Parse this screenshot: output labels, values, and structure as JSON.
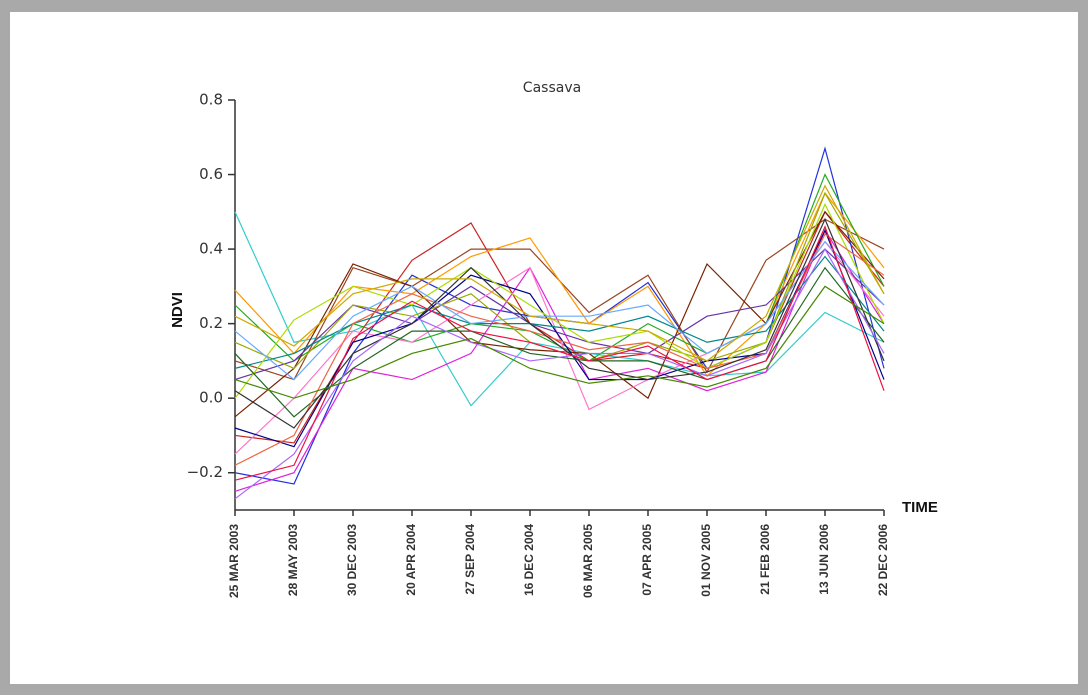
{
  "chart_data": {
    "type": "line",
    "title": "Cassava",
    "x_label": "TIME",
    "y_label": "NDVI",
    "categories": [
      "25 MAR 2003",
      "28 MAY 2003",
      "30 DEC 2003",
      "20 APR 2004",
      "27 SEP 2004",
      "16 DEC 2004",
      "06 MAR 2005",
      "07 APR 2005",
      "01 NOV 2005",
      "21 FEB 2006",
      "13 JUN 2006",
      "22 DEC 2006"
    ],
    "category_colors": [
      "#111111",
      "#111111",
      "#111111",
      "#111111",
      "#e02020",
      "#111111",
      "#111111",
      "#111111",
      "#111111",
      "#111111",
      "#e02020",
      "#e02020"
    ],
    "ylim": [
      -0.3,
      0.8
    ],
    "yticks": [
      {
        "value": -0.2,
        "label": "−0.2"
      },
      {
        "value": 0,
        "label": "0.0"
      },
      0.2,
      0.4,
      0.6,
      0.8
    ],
    "series": [
      {
        "color": "#33cccc",
        "values": [
          0.5,
          0.15,
          0.18,
          0.25,
          -0.02,
          0.15,
          0.12,
          0.1,
          0.06,
          0.07,
          0.23,
          0.15
        ]
      },
      {
        "color": "#cc2222",
        "values": [
          -0.1,
          -0.12,
          0.15,
          0.37,
          0.47,
          0.2,
          0.1,
          0.12,
          0.08,
          0.15,
          0.5,
          0.3
        ]
      },
      {
        "color": "#2233dd",
        "values": [
          -0.2,
          -0.23,
          0.12,
          0.33,
          0.25,
          0.22,
          0.2,
          0.31,
          0.08,
          0.15,
          0.67,
          0.08
        ]
      },
      {
        "color": "#994422",
        "values": [
          0.1,
          0.05,
          0.35,
          0.3,
          0.4,
          0.4,
          0.23,
          0.33,
          0.07,
          0.37,
          0.48,
          0.4
        ]
      },
      {
        "color": "#ff9900",
        "values": [
          0.29,
          0.12,
          0.3,
          0.28,
          0.38,
          0.43,
          0.2,
          0.3,
          0.06,
          0.2,
          0.55,
          0.35
        ]
      },
      {
        "color": "#22aa22",
        "values": [
          0.25,
          0.1,
          0.2,
          0.15,
          0.2,
          0.18,
          0.1,
          0.2,
          0.12,
          0.2,
          0.6,
          0.3
        ]
      },
      {
        "color": "#dd22dd",
        "values": [
          -0.25,
          -0.2,
          0.08,
          0.05,
          0.12,
          0.35,
          0.05,
          0.08,
          0.02,
          0.07,
          0.45,
          0.2
        ]
      },
      {
        "color": "#772200",
        "values": [
          -0.05,
          0.08,
          0.36,
          0.3,
          0.15,
          0.13,
          0.12,
          0.0,
          0.36,
          0.2,
          0.5,
          0.32
        ]
      },
      {
        "color": "#6633aa",
        "values": [
          0.05,
          0.1,
          0.25,
          0.2,
          0.3,
          0.2,
          0.15,
          0.12,
          0.22,
          0.25,
          0.4,
          0.25
        ]
      },
      {
        "color": "#ff77cc",
        "values": [
          -0.15,
          0.0,
          0.18,
          0.15,
          0.25,
          0.35,
          -0.03,
          0.05,
          0.12,
          0.2,
          0.42,
          0.22
        ]
      },
      {
        "color": "#99aa00",
        "values": [
          0.15,
          0.08,
          0.25,
          0.22,
          0.28,
          0.15,
          0.1,
          0.15,
          0.1,
          0.15,
          0.55,
          0.28
        ]
      },
      {
        "color": "#000088",
        "values": [
          -0.08,
          -0.13,
          0.15,
          0.2,
          0.33,
          0.28,
          0.05,
          0.05,
          0.1,
          0.12,
          0.45,
          0.05
        ]
      },
      {
        "color": "#008888",
        "values": [
          0.08,
          0.12,
          0.2,
          0.25,
          0.2,
          0.2,
          0.18,
          0.22,
          0.15,
          0.18,
          0.38,
          0.18
        ]
      },
      {
        "color": "#aadd00",
        "values": [
          0.0,
          0.21,
          0.3,
          0.25,
          0.35,
          0.25,
          0.15,
          0.18,
          0.08,
          0.15,
          0.52,
          0.2
        ]
      },
      {
        "color": "#226622",
        "values": [
          0.12,
          -0.05,
          0.08,
          0.18,
          0.18,
          0.12,
          0.1,
          0.1,
          0.05,
          0.1,
          0.35,
          0.15
        ]
      },
      {
        "color": "#ee6644",
        "values": [
          -0.18,
          -0.1,
          0.2,
          0.28,
          0.22,
          0.18,
          0.13,
          0.15,
          0.08,
          0.12,
          0.44,
          0.33
        ]
      },
      {
        "color": "#66aaff",
        "values": [
          0.18,
          0.05,
          0.22,
          0.3,
          0.2,
          0.22,
          0.22,
          0.25,
          0.12,
          0.2,
          0.42,
          0.25
        ]
      },
      {
        "color": "#333333",
        "values": [
          0.02,
          -0.08,
          0.12,
          0.2,
          0.35,
          0.2,
          0.08,
          0.05,
          0.07,
          0.13,
          0.48,
          0.1
        ]
      },
      {
        "color": "#aa66ff",
        "values": [
          -0.27,
          -0.15,
          0.1,
          0.22,
          0.15,
          0.1,
          0.12,
          0.12,
          0.06,
          0.12,
          0.4,
          0.12
        ]
      },
      {
        "color": "#ccaa00",
        "values": [
          0.22,
          0.14,
          0.28,
          0.32,
          0.32,
          0.22,
          0.2,
          0.18,
          0.1,
          0.22,
          0.57,
          0.28
        ]
      },
      {
        "color": "#ee1144",
        "values": [
          -0.22,
          -0.18,
          0.16,
          0.26,
          0.18,
          0.15,
          0.1,
          0.14,
          0.05,
          0.1,
          0.46,
          0.02
        ]
      },
      {
        "color": "#448800",
        "values": [
          0.05,
          0.0,
          0.05,
          0.12,
          0.16,
          0.08,
          0.04,
          0.06,
          0.03,
          0.08,
          0.3,
          0.2
        ]
      }
    ]
  }
}
